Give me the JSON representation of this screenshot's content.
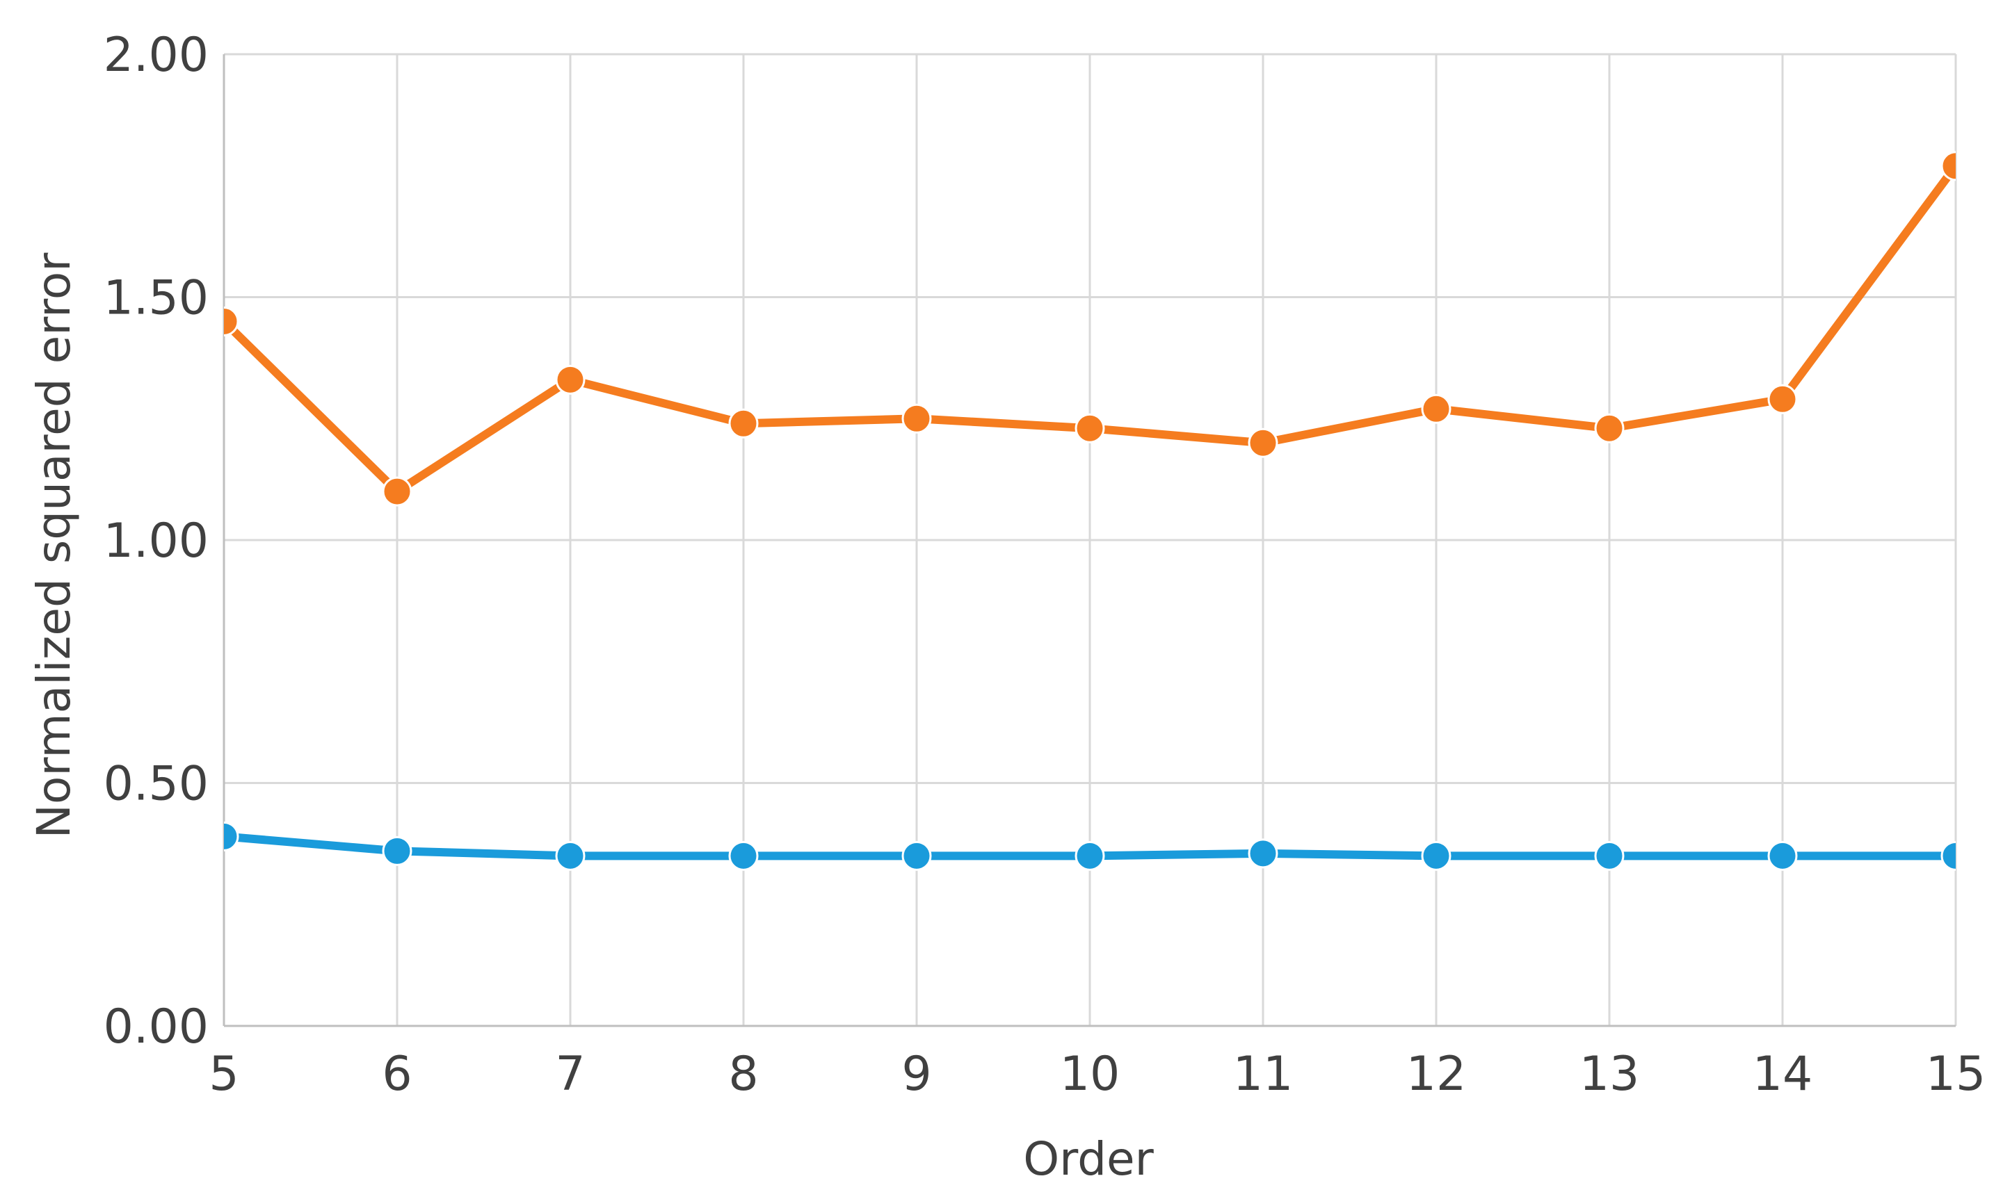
{
  "chart_data": {
    "type": "line",
    "xlabel": "Order",
    "ylabel": "Normalized squared error",
    "x": [
      5,
      6,
      7,
      8,
      9,
      10,
      11,
      12,
      13,
      14,
      15
    ],
    "xlim": [
      5,
      15
    ],
    "ylim": [
      0,
      2
    ],
    "x_ticks": [
      "5",
      "6",
      "7",
      "8",
      "9",
      "10",
      "11",
      "12",
      "13",
      "14",
      "15"
    ],
    "y_ticks": [
      "0.00",
      "0.50",
      "1.00",
      "1.50",
      "2.00"
    ],
    "y_tick_values": [
      0,
      0.5,
      1,
      1.5,
      2
    ],
    "grid": true,
    "series": [
      {
        "color": "#F57C1F",
        "values": [
          1.45,
          1.1,
          1.33,
          1.24,
          1.25,
          1.23,
          1.2,
          1.27,
          1.23,
          1.29,
          1.77
        ]
      },
      {
        "color": "#1A9BDB",
        "values": [
          0.39,
          0.36,
          0.35,
          0.35,
          0.35,
          0.35,
          0.355,
          0.35,
          0.35,
          0.35,
          0.35
        ]
      }
    ]
  }
}
